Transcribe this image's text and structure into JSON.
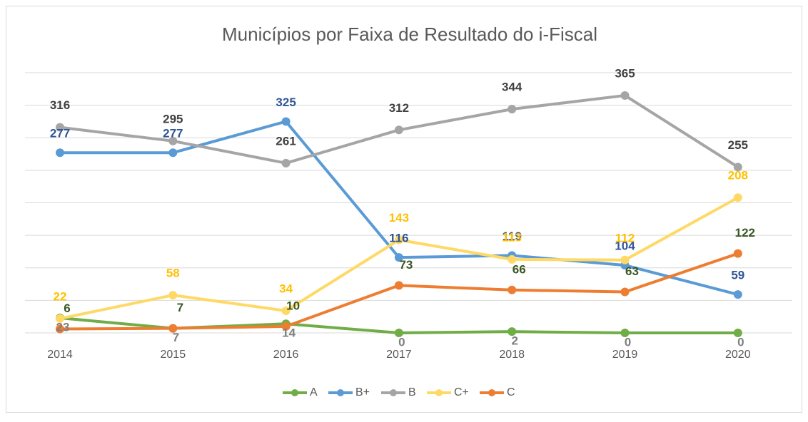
{
  "chart_data": {
    "type": "line",
    "title": "Municípios por Faixa de Resultado do i-Fiscal",
    "categories": [
      "2014",
      "2015",
      "2016",
      "2017",
      "2018",
      "2019",
      "2020"
    ],
    "ylim": [
      0,
      400
    ],
    "yticks": [
      0,
      50,
      100,
      150,
      200,
      250,
      300,
      350,
      400
    ],
    "grid": true,
    "legend": "bottom",
    "series": [
      {
        "name": "A",
        "color": "#70ad47",
        "label_color": "#7f7f7f",
        "values": [
          23,
          7,
          14,
          0,
          2,
          0,
          0
        ]
      },
      {
        "name": "B+",
        "color": "#5b9bd5",
        "label_color": "#2f5597",
        "values": [
          277,
          277,
          325,
          116,
          119,
          104,
          59
        ]
      },
      {
        "name": "B",
        "color": "#a5a5a5",
        "label_color": "#404040",
        "values": [
          316,
          295,
          261,
          312,
          344,
          365,
          255
        ]
      },
      {
        "name": "C+",
        "color": "#ffd966",
        "label_color": "#ffc000",
        "values": [
          22,
          58,
          34,
          143,
          113,
          112,
          208
        ]
      },
      {
        "name": "C",
        "color": "#ed7d31",
        "label_color": "#385723",
        "values": [
          6,
          7,
          10,
          73,
          66,
          63,
          122
        ]
      }
    ]
  }
}
